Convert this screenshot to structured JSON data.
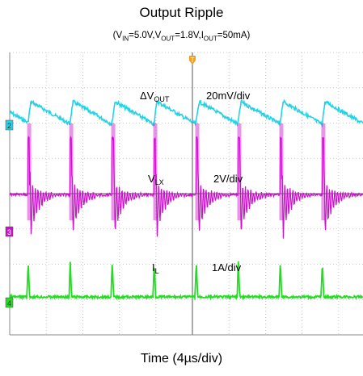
{
  "chart_data": {
    "type": "line",
    "title": "Output Ripple",
    "subtitle": {
      "prefix": "(V",
      "vin_sub": "IN",
      "vin_val": "=5.0V,V",
      "vout_sub": "OUT",
      "vout_val": "=1.8V,I",
      "iout_sub": "OUT",
      "iout_val": "=50mA)"
    },
    "xlabel": "Time (4µs/div)",
    "grid": true,
    "x_divisions": 10,
    "y_divisions": 8,
    "x_unit_per_div": "4µs",
    "switching_edges_div": [
      0.5,
      1.65,
      2.8,
      3.95,
      5.1,
      6.25,
      7.4,
      8.55,
      9.7
    ],
    "trigger_marker": "T",
    "series": [
      {
        "name_main": "ΔV",
        "name_sub": "OUT",
        "scale": "20mV/div",
        "channel": "2",
        "color": "#22d3e6",
        "shape": "sawtooth ripple"
      },
      {
        "name_main": "V",
        "name_sub": "LX",
        "scale": "2V/div",
        "channel": "3",
        "color": "#cc11cc",
        "shape": "switch node pulses with ringing"
      },
      {
        "name_main": "I",
        "name_sub": "L",
        "scale": "1A/div",
        "channel": "4",
        "color": "#22dd22",
        "shape": "inductor current spikes"
      }
    ]
  }
}
